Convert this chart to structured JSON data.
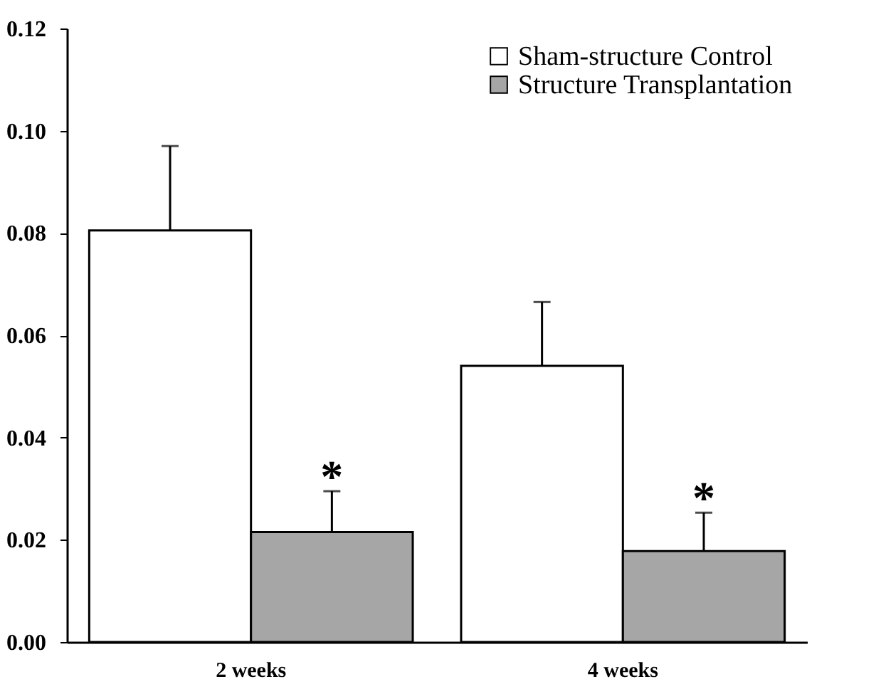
{
  "chart_data": {
    "type": "bar",
    "categories": [
      "2 weeks",
      "4 weeks"
    ],
    "series": [
      {
        "name": "Sham-structure Control",
        "color": "#ffffff",
        "values": [
          0.0805,
          0.054
        ],
        "errors": [
          [
            0.0805,
            0.097
          ],
          [
            0.054,
            0.0665
          ]
        ]
      },
      {
        "name": "Structure Transplantation",
        "color": "#a6a6a6",
        "values": [
          0.0215,
          0.0178
        ],
        "errors": [
          [
            0.0215,
            0.0295
          ],
          [
            0.0178,
            0.0253
          ]
        ]
      }
    ],
    "ylim": [
      0,
      0.12
    ],
    "yticks": [
      {
        "value": 0,
        "label": "0.00"
      },
      {
        "value": 0.02,
        "label": "0.02"
      },
      {
        "value": 0.04,
        "label": "0.04"
      },
      {
        "value": 0.06,
        "label": "0.06"
      },
      {
        "value": 0.08,
        "label": "0.08"
      },
      {
        "value": 0.1,
        "label": "0.10"
      },
      {
        "value": 0.12,
        "label": "0.12"
      }
    ],
    "annotations": [
      {
        "text": "*",
        "x": "2 weeks",
        "y": 0.031
      },
      {
        "text": "*",
        "x": "4 weeks",
        "y": 0.0268
      }
    ],
    "legend": "top right",
    "grid": false
  }
}
